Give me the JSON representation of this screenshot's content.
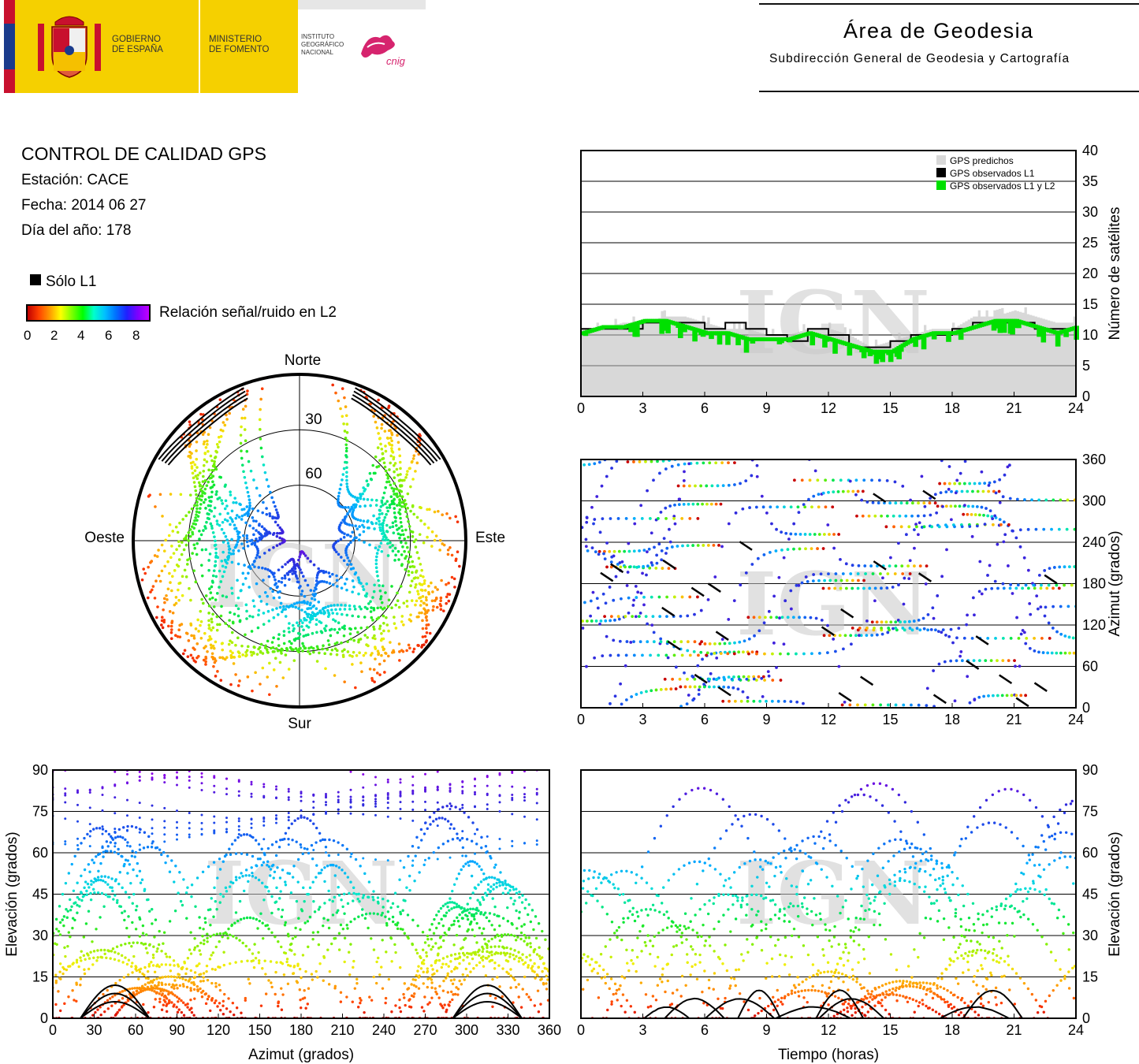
{
  "header": {
    "gov_line1": "GOBIERNO",
    "gov_line2": "DE ESPAÑA",
    "ministry_line1": "MINISTERIO",
    "ministry_line2": "DE FOMENTO",
    "inst_line1": "INSTITUTO",
    "inst_line2": "GEOGRÁFICO",
    "inst_line3": "NACIONAL",
    "cnig_logo_text": "cnig",
    "area_title": "Área de Geodesia",
    "area_subtitle": "Subdirección General de Geodesia y Cartografía"
  },
  "info": {
    "title": "CONTROL DE CALIDAD GPS",
    "station": "Estación: CACE",
    "date": "Fecha: 2014 06 27",
    "doy": "Día del año: 178",
    "l1_legend": "Sólo L1",
    "colorbar_label": "Relación señal/ruido en L2",
    "colorbar_ticks": [
      "0",
      "2",
      "4",
      "6",
      "8"
    ]
  },
  "watermark": "IGN",
  "chart_data": [
    {
      "id": "skyplot",
      "type": "scatter",
      "projection": "polar",
      "directions": {
        "north": "Norte",
        "south": "Sur",
        "east": "Este",
        "west": "Oeste"
      },
      "elevation_rings": [
        0,
        30,
        60
      ],
      "ring_labels": [
        "30",
        "60"
      ],
      "tracks_azimuth_range_deg": [
        [
          20,
          70
        ],
        [
          290,
          340
        ],
        [
          90,
          270
        ]
      ],
      "color_scale": "snr_l2",
      "snr_range": [
        0,
        8
      ]
    },
    {
      "id": "satellites",
      "type": "area",
      "x_ticks": [
        "0",
        "3",
        "6",
        "9",
        "12",
        "15",
        "18",
        "21",
        "24"
      ],
      "y_ticks": [
        "0",
        "5",
        "10",
        "15",
        "20",
        "25",
        "30",
        "35",
        "40"
      ],
      "xlim": [
        0,
        24
      ],
      "ylim": [
        0,
        40
      ],
      "ylabel": "Número de satélites",
      "legend": [
        "GPS predichos",
        "GPS observados L1",
        "GPS observados L1 y L2"
      ],
      "legend_position": "top-right",
      "colors": [
        "#d8d8d8",
        "#000000",
        "#00e000"
      ],
      "series": [
        {
          "name": "GPS predichos",
          "x": [
            0,
            1,
            2,
            3,
            4,
            5,
            6,
            7,
            8,
            9,
            10,
            11,
            12,
            13,
            14,
            15,
            16,
            17,
            18,
            19,
            20,
            21,
            22,
            23,
            24
          ],
          "values": [
            11,
            11,
            12,
            12,
            13,
            13,
            12,
            11,
            11,
            10,
            10,
            11,
            11,
            10,
            8,
            9,
            10,
            11,
            11,
            13,
            13,
            14,
            13,
            12,
            12
          ]
        },
        {
          "name": "GPS observados L1",
          "x": [
            0,
            1,
            2,
            3,
            4,
            5,
            6,
            7,
            8,
            9,
            10,
            11,
            12,
            13,
            14,
            15,
            16,
            17,
            18,
            19,
            20,
            21,
            22,
            23,
            24
          ],
          "values": [
            11,
            11,
            11,
            12,
            12,
            12,
            11,
            12,
            11,
            10,
            9,
            11,
            10,
            8,
            8,
            9,
            10,
            10,
            11,
            12,
            12,
            12,
            11,
            11,
            11
          ]
        },
        {
          "name": "GPS observados L1 y L2",
          "x": [
            0,
            1,
            2,
            3,
            4,
            5,
            6,
            7,
            8,
            9,
            10,
            11,
            12,
            13,
            14,
            15,
            16,
            17,
            18,
            19,
            20,
            21,
            22,
            23,
            24
          ],
          "values": [
            10,
            11,
            11,
            12,
            12,
            11,
            10,
            10,
            9,
            9,
            9,
            10,
            9,
            8,
            7,
            7,
            9,
            10,
            10,
            11,
            12,
            12,
            11,
            10,
            11
          ]
        }
      ]
    },
    {
      "id": "azimuth-time",
      "type": "scatter",
      "x_ticks": [
        "0",
        "3",
        "6",
        "9",
        "12",
        "15",
        "18",
        "21",
        "24"
      ],
      "y_ticks": [
        "0",
        "60",
        "120",
        "180",
        "240",
        "300",
        "360"
      ],
      "xlim": [
        0,
        24
      ],
      "ylim": [
        0,
        360
      ],
      "ylabel": "Azimut (grados)",
      "color_scale": "snr_l2"
    },
    {
      "id": "elevation-azimuth",
      "type": "scatter",
      "x_ticks": [
        "0",
        "30",
        "60",
        "90",
        "120",
        "150",
        "180",
        "210",
        "240",
        "270",
        "300",
        "330",
        "360"
      ],
      "y_ticks": [
        "0",
        "15",
        "30",
        "45",
        "60",
        "75",
        "90"
      ],
      "xlim": [
        0,
        360
      ],
      "ylim": [
        0,
        90
      ],
      "xlabel": "Azimut (grados)",
      "ylabel": "Elevación (grados)",
      "color_scale": "snr_l2"
    },
    {
      "id": "elevation-time",
      "type": "scatter",
      "x_ticks": [
        "0",
        "3",
        "6",
        "9",
        "12",
        "15",
        "18",
        "21",
        "24"
      ],
      "y_ticks": [
        "0",
        "15",
        "30",
        "45",
        "60",
        "75",
        "90"
      ],
      "xlim": [
        0,
        24
      ],
      "ylim": [
        0,
        90
      ],
      "xlabel": "Tiempo (horas)",
      "ylabel": "Elevación (grados)",
      "color_scale": "snr_l2"
    }
  ]
}
